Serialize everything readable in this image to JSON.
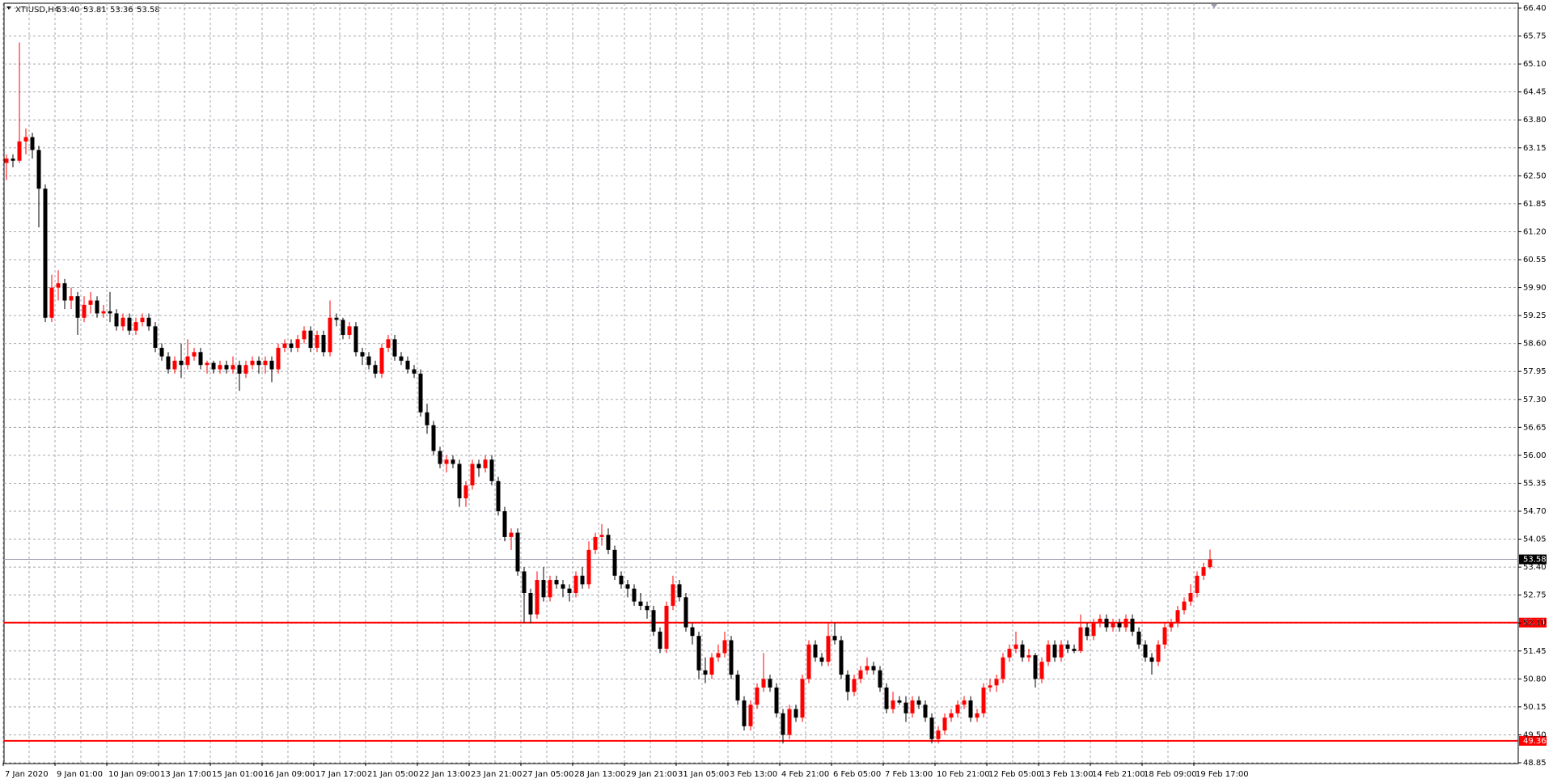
{
  "chart_data": {
    "type": "candlestick",
    "symbol": "XTIUSD,H4",
    "ohlc_labels": [
      "53.40",
      "53.81",
      "53.36",
      "53.58"
    ],
    "up_color": "#ff0000",
    "down_color": "#000000",
    "ylim": [
      48.85,
      66.4
    ],
    "yticks": [
      {
        "value": 66.4,
        "label": "66.40"
      },
      65.75,
      {
        "value": 65.1,
        "label": "65.10"
      },
      64.45,
      {
        "value": 63.8,
        "label": "63.80"
      },
      63.15,
      {
        "value": 62.5,
        "label": "62.50"
      },
      61.85,
      {
        "value": 61.2,
        "label": "61.20"
      },
      60.55,
      {
        "value": 59.9,
        "label": "59.90"
      },
      59.25,
      {
        "value": 58.6,
        "label": "58.60"
      },
      57.95,
      {
        "value": 57.3,
        "label": "57.30"
      },
      56.65,
      {
        "value": 56.0,
        "label": "56.00"
      },
      55.35,
      {
        "value": 54.7,
        "label": "54.70"
      },
      54.05,
      {
        "value": 53.4,
        "label": "53.40"
      },
      52.75,
      {
        "value": 52.1,
        "label": "52.10"
      },
      51.45,
      {
        "value": 50.8,
        "label": "50.80"
      },
      50.15,
      {
        "value": 49.5,
        "label": "49.50"
      },
      48.85
    ],
    "grid": true,
    "current_price": 53.58,
    "current_price_color": "#9a9ab0",
    "levels": [
      {
        "value": 52.11,
        "color": "#ff0000"
      },
      {
        "value": 49.36,
        "color": "#ff0000"
      }
    ],
    "categories": [
      "7 Jan 2020",
      null,
      null,
      null,
      null,
      null,
      null,
      null,
      "9 Jan 01:00",
      null,
      null,
      null,
      null,
      null,
      null,
      null,
      "10 Jan 09:00",
      null,
      null,
      null,
      null,
      null,
      null,
      null,
      "13 Jan 17:00",
      null,
      null,
      null,
      null,
      null,
      null,
      null,
      "15 Jan 01:00",
      null,
      null,
      null,
      null,
      null,
      null,
      null,
      "16 Jan 09:00",
      null,
      null,
      null,
      null,
      null,
      null,
      null,
      "17 Jan 17:00",
      null,
      null,
      null,
      null,
      null,
      null,
      null,
      "21 Jan 05:00",
      null,
      null,
      null,
      null,
      null,
      null,
      null,
      "22 Jan 13:00",
      null,
      null,
      null,
      null,
      null,
      null,
      null,
      "23 Jan 21:00",
      null,
      null,
      null,
      null,
      null,
      null,
      null,
      "27 Jan 05:00",
      null,
      null,
      null,
      null,
      null,
      null,
      null,
      "28 Jan 13:00",
      null,
      null,
      null,
      null,
      null,
      null,
      null,
      "29 Jan 21:00",
      null,
      null,
      null,
      null,
      null,
      null,
      null,
      "31 Jan 05:00",
      null,
      null,
      null,
      null,
      null,
      null,
      null,
      "3 Feb 13:00",
      null,
      null,
      null,
      null,
      null,
      null,
      null,
      "4 Feb 21:00",
      null,
      null,
      null,
      null,
      null,
      null,
      null,
      "6 Feb 05:00",
      null,
      null,
      null,
      null,
      null,
      null,
      null,
      "7 Feb 13:00",
      null,
      null,
      null,
      null,
      null,
      null,
      null,
      "10 Feb 21:00",
      null,
      null,
      null,
      null,
      null,
      null,
      null,
      "12 Feb 05:00",
      null,
      null,
      null,
      null,
      null,
      null,
      null,
      "13 Feb 13:00",
      null,
      null,
      null,
      null,
      null,
      null,
      null,
      "14 Feb 21:00",
      null,
      null,
      null,
      null,
      null,
      null,
      null,
      "18 Feb 09:00",
      null,
      null,
      null,
      null,
      null,
      null,
      null,
      "19 Feb 17:00",
      null,
      null
    ],
    "candles": [
      [
        62.8,
        63.0,
        62.4,
        62.9
      ],
      [
        62.9,
        63.0,
        62.7,
        62.85
      ],
      [
        62.85,
        65.6,
        62.8,
        63.3
      ],
      [
        63.3,
        63.6,
        63.0,
        63.4
      ],
      [
        63.4,
        63.5,
        62.9,
        63.1
      ],
      [
        63.1,
        63.2,
        61.3,
        62.2
      ],
      [
        62.2,
        62.3,
        59.1,
        59.2
      ],
      [
        59.2,
        60.2,
        59.1,
        59.9
      ],
      [
        59.9,
        60.3,
        59.6,
        60.0
      ],
      [
        60.0,
        60.1,
        59.4,
        59.6
      ],
      [
        59.6,
        59.9,
        59.4,
        59.7
      ],
      [
        59.7,
        59.8,
        58.8,
        59.2
      ],
      [
        59.2,
        59.7,
        59.1,
        59.5
      ],
      [
        59.5,
        59.8,
        59.3,
        59.6
      ],
      [
        59.6,
        59.7,
        59.2,
        59.3
      ],
      [
        59.3,
        59.5,
        59.2,
        59.35
      ],
      [
        59.35,
        59.8,
        59.1,
        59.3
      ],
      [
        59.3,
        59.4,
        58.9,
        59.0
      ],
      [
        59.0,
        59.3,
        58.9,
        59.2
      ],
      [
        59.2,
        59.3,
        58.8,
        58.9
      ],
      [
        58.9,
        59.2,
        58.8,
        59.1
      ],
      [
        59.1,
        59.3,
        59.0,
        59.2
      ],
      [
        59.2,
        59.3,
        58.9,
        59.0
      ],
      [
        59.0,
        59.1,
        58.4,
        58.5
      ],
      [
        58.5,
        58.6,
        58.2,
        58.3
      ],
      [
        58.3,
        58.4,
        57.9,
        58.0
      ],
      [
        58.0,
        58.3,
        57.9,
        58.2
      ],
      [
        58.2,
        58.6,
        57.8,
        58.1
      ],
      [
        58.1,
        58.7,
        58.0,
        58.3
      ],
      [
        58.3,
        58.5,
        58.2,
        58.4
      ],
      [
        58.4,
        58.5,
        58.0,
        58.1
      ],
      [
        58.1,
        58.2,
        57.9,
        58.15
      ],
      [
        58.15,
        58.2,
        57.9,
        58.0
      ],
      [
        58.0,
        58.2,
        57.9,
        58.1
      ],
      [
        58.1,
        58.2,
        57.9,
        58.0
      ],
      [
        58.0,
        58.3,
        57.9,
        58.1
      ],
      [
        58.1,
        58.2,
        57.5,
        57.9
      ],
      [
        57.9,
        58.2,
        57.8,
        58.1
      ],
      [
        58.1,
        58.3,
        58.0,
        58.2
      ],
      [
        58.2,
        58.3,
        57.9,
        58.1
      ],
      [
        58.1,
        58.3,
        57.9,
        58.2
      ],
      [
        58.2,
        58.3,
        57.7,
        58.0
      ],
      [
        58.0,
        58.6,
        57.9,
        58.5
      ],
      [
        58.5,
        58.7,
        58.4,
        58.6
      ],
      [
        58.6,
        58.7,
        58.4,
        58.5
      ],
      [
        58.5,
        58.8,
        58.4,
        58.7
      ],
      [
        58.7,
        59.0,
        58.6,
        58.9
      ],
      [
        58.9,
        59.0,
        58.4,
        58.5
      ],
      [
        58.5,
        58.9,
        58.4,
        58.8
      ],
      [
        58.8,
        58.9,
        58.3,
        58.4
      ],
      [
        58.4,
        59.6,
        58.3,
        59.2
      ],
      [
        59.2,
        59.3,
        59.0,
        59.15
      ],
      [
        59.15,
        59.2,
        58.7,
        58.8
      ],
      [
        58.8,
        59.1,
        58.7,
        59.0
      ],
      [
        59.0,
        59.1,
        58.3,
        58.4
      ],
      [
        58.4,
        58.5,
        58.1,
        58.3
      ],
      [
        58.3,
        58.4,
        58.0,
        58.1
      ],
      [
        58.1,
        58.2,
        57.8,
        57.9
      ],
      [
        57.9,
        58.6,
        57.8,
        58.5
      ],
      [
        58.5,
        58.8,
        58.4,
        58.7
      ],
      [
        58.7,
        58.8,
        58.2,
        58.3
      ],
      [
        58.3,
        58.4,
        58.1,
        58.2
      ],
      [
        58.2,
        58.3,
        57.9,
        58.0
      ],
      [
        58.0,
        58.1,
        57.8,
        57.9
      ],
      [
        57.9,
        58.0,
        56.9,
        57.0
      ],
      [
        57.0,
        57.2,
        56.5,
        56.7
      ],
      [
        56.7,
        56.8,
        56.0,
        56.1
      ],
      [
        56.1,
        56.2,
        55.7,
        55.8
      ],
      [
        55.8,
        56.0,
        55.6,
        55.9
      ],
      [
        55.9,
        56.0,
        55.7,
        55.8
      ],
      [
        55.8,
        55.9,
        54.8,
        55.0
      ],
      [
        55.0,
        55.4,
        54.8,
        55.3
      ],
      [
        55.3,
        55.9,
        55.2,
        55.8
      ],
      [
        55.8,
        55.9,
        55.5,
        55.7
      ],
      [
        55.7,
        56.0,
        55.6,
        55.9
      ],
      [
        55.9,
        56.0,
        55.3,
        55.4
      ],
      [
        55.4,
        55.5,
        54.6,
        54.7
      ],
      [
        54.7,
        54.8,
        54.0,
        54.1
      ],
      [
        54.1,
        54.3,
        53.8,
        54.2
      ],
      [
        54.2,
        54.3,
        53.2,
        53.3
      ],
      [
        53.3,
        53.4,
        52.1,
        52.8
      ],
      [
        52.8,
        52.9,
        52.1,
        52.3
      ],
      [
        52.3,
        53.3,
        52.2,
        53.1
      ],
      [
        53.1,
        53.4,
        52.6,
        52.7
      ],
      [
        52.7,
        53.2,
        52.6,
        53.1
      ],
      [
        53.1,
        53.2,
        52.9,
        53.0
      ],
      [
        53.0,
        53.1,
        52.7,
        52.9
      ],
      [
        52.9,
        53.0,
        52.6,
        52.8
      ],
      [
        52.8,
        53.3,
        52.7,
        53.2
      ],
      [
        53.2,
        53.4,
        52.9,
        53.0
      ],
      [
        53.0,
        54.0,
        52.9,
        53.8
      ],
      [
        53.8,
        54.2,
        53.7,
        54.1
      ],
      [
        54.1,
        54.4,
        53.9,
        54.15
      ],
      [
        54.15,
        54.3,
        53.7,
        53.8
      ],
      [
        53.8,
        53.9,
        53.1,
        53.2
      ],
      [
        53.2,
        53.3,
        52.9,
        53.0
      ],
      [
        53.0,
        53.1,
        52.7,
        52.9
      ],
      [
        52.9,
        53.0,
        52.5,
        52.6
      ],
      [
        52.6,
        52.8,
        52.4,
        52.5
      ],
      [
        52.5,
        52.6,
        52.2,
        52.4
      ],
      [
        52.4,
        52.5,
        51.8,
        51.9
      ],
      [
        51.9,
        52.0,
        51.4,
        51.5
      ],
      [
        51.5,
        52.6,
        51.4,
        52.5
      ],
      [
        52.5,
        53.2,
        52.4,
        53.0
      ],
      [
        53.0,
        53.1,
        52.6,
        52.7
      ],
      [
        52.7,
        52.8,
        51.9,
        52.0
      ],
      [
        52.0,
        52.1,
        51.6,
        51.8
      ],
      [
        51.8,
        51.9,
        50.8,
        51.0
      ],
      [
        51.0,
        51.3,
        50.7,
        50.9
      ],
      [
        50.9,
        51.4,
        50.8,
        51.3
      ],
      [
        51.3,
        51.6,
        51.2,
        51.4
      ],
      [
        51.4,
        51.9,
        51.3,
        51.7
      ],
      [
        51.7,
        51.8,
        50.8,
        50.9
      ],
      [
        50.9,
        51.0,
        50.2,
        50.3
      ],
      [
        50.3,
        50.4,
        49.6,
        49.7
      ],
      [
        49.7,
        50.3,
        49.6,
        50.2
      ],
      [
        50.2,
        50.7,
        50.1,
        50.6
      ],
      [
        50.6,
        51.4,
        50.5,
        50.8
      ],
      [
        50.8,
        50.9,
        50.5,
        50.6
      ],
      [
        50.6,
        50.7,
        49.9,
        50.0
      ],
      [
        50.0,
        50.1,
        49.3,
        49.5
      ],
      [
        49.5,
        50.2,
        49.4,
        50.1
      ],
      [
        50.1,
        50.2,
        49.8,
        49.9
      ],
      [
        49.9,
        50.9,
        49.8,
        50.8
      ],
      [
        50.8,
        51.7,
        50.7,
        51.6
      ],
      [
        51.6,
        51.7,
        51.2,
        51.3
      ],
      [
        51.3,
        51.4,
        51.1,
        51.2
      ],
      [
        51.2,
        52.1,
        51.1,
        51.8
      ],
      [
        51.8,
        52.1,
        51.6,
        51.7
      ],
      [
        51.7,
        51.8,
        50.8,
        50.9
      ],
      [
        50.9,
        51.0,
        50.3,
        50.5
      ],
      [
        50.5,
        50.9,
        50.4,
        50.8
      ],
      [
        50.8,
        51.1,
        50.7,
        51.0
      ],
      [
        51.0,
        51.3,
        50.9,
        51.1
      ],
      [
        51.1,
        51.2,
        50.9,
        51.0
      ],
      [
        51.0,
        51.1,
        50.5,
        50.6
      ],
      [
        50.6,
        50.7,
        50.0,
        50.1
      ],
      [
        50.1,
        50.5,
        50.0,
        50.3
      ],
      [
        50.3,
        50.4,
        50.2,
        50.25
      ],
      [
        50.25,
        50.4,
        49.8,
        50.0
      ],
      [
        50.0,
        50.4,
        49.9,
        50.3
      ],
      [
        50.3,
        50.4,
        50.1,
        50.2
      ],
      [
        50.2,
        50.3,
        49.8,
        49.9
      ],
      [
        49.9,
        50.0,
        49.3,
        49.4
      ],
      [
        49.4,
        49.7,
        49.3,
        49.6
      ],
      [
        49.6,
        50.0,
        49.5,
        49.9
      ],
      [
        49.9,
        50.1,
        49.8,
        50.0
      ],
      [
        50.0,
        50.3,
        49.9,
        50.2
      ],
      [
        50.2,
        50.4,
        50.1,
        50.3
      ],
      [
        50.3,
        50.4,
        49.8,
        49.9
      ],
      [
        49.9,
        50.1,
        49.8,
        50.0
      ],
      [
        50.0,
        50.7,
        49.9,
        50.6
      ],
      [
        50.6,
        50.8,
        50.5,
        50.65
      ],
      [
        50.65,
        50.9,
        50.5,
        50.8
      ],
      [
        50.8,
        51.4,
        50.7,
        51.3
      ],
      [
        51.3,
        51.6,
        51.2,
        51.5
      ],
      [
        51.5,
        51.9,
        51.4,
        51.6
      ],
      [
        51.6,
        51.7,
        51.2,
        51.3
      ],
      [
        51.3,
        51.5,
        51.2,
        51.35
      ],
      [
        51.35,
        51.4,
        50.6,
        50.8
      ],
      [
        50.8,
        51.3,
        50.7,
        51.2
      ],
      [
        51.2,
        51.7,
        51.1,
        51.6
      ],
      [
        51.6,
        51.7,
        51.2,
        51.3
      ],
      [
        51.3,
        51.7,
        51.2,
        51.6
      ],
      [
        51.6,
        51.7,
        51.4,
        51.5
      ],
      [
        51.5,
        51.6,
        51.4,
        51.45
      ],
      [
        51.45,
        52.3,
        51.4,
        52.0
      ],
      [
        52.0,
        52.1,
        51.7,
        51.8
      ],
      [
        51.8,
        52.2,
        51.7,
        52.1
      ],
      [
        52.1,
        52.3,
        52.0,
        52.2
      ],
      [
        52.2,
        52.3,
        51.9,
        52.0
      ],
      [
        52.0,
        52.2,
        51.9,
        52.1
      ],
      [
        52.1,
        52.2,
        51.9,
        52.0
      ],
      [
        52.0,
        52.3,
        51.9,
        52.2
      ],
      [
        52.2,
        52.3,
        51.8,
        51.9
      ],
      [
        51.9,
        52.0,
        51.5,
        51.6
      ],
      [
        51.6,
        51.7,
        51.2,
        51.3
      ],
      [
        51.3,
        51.4,
        50.9,
        51.2
      ],
      [
        51.2,
        51.7,
        51.1,
        51.6
      ],
      [
        51.6,
        52.1,
        51.5,
        52.0
      ],
      [
        52.0,
        52.2,
        51.9,
        52.1
      ],
      [
        52.1,
        52.5,
        52.0,
        52.4
      ],
      [
        52.4,
        52.7,
        52.3,
        52.6
      ],
      [
        52.6,
        53.0,
        52.5,
        52.8
      ],
      [
        52.8,
        53.3,
        52.7,
        53.2
      ],
      [
        53.2,
        53.5,
        53.1,
        53.4
      ],
      [
        53.4,
        53.81,
        53.36,
        53.58
      ]
    ]
  }
}
